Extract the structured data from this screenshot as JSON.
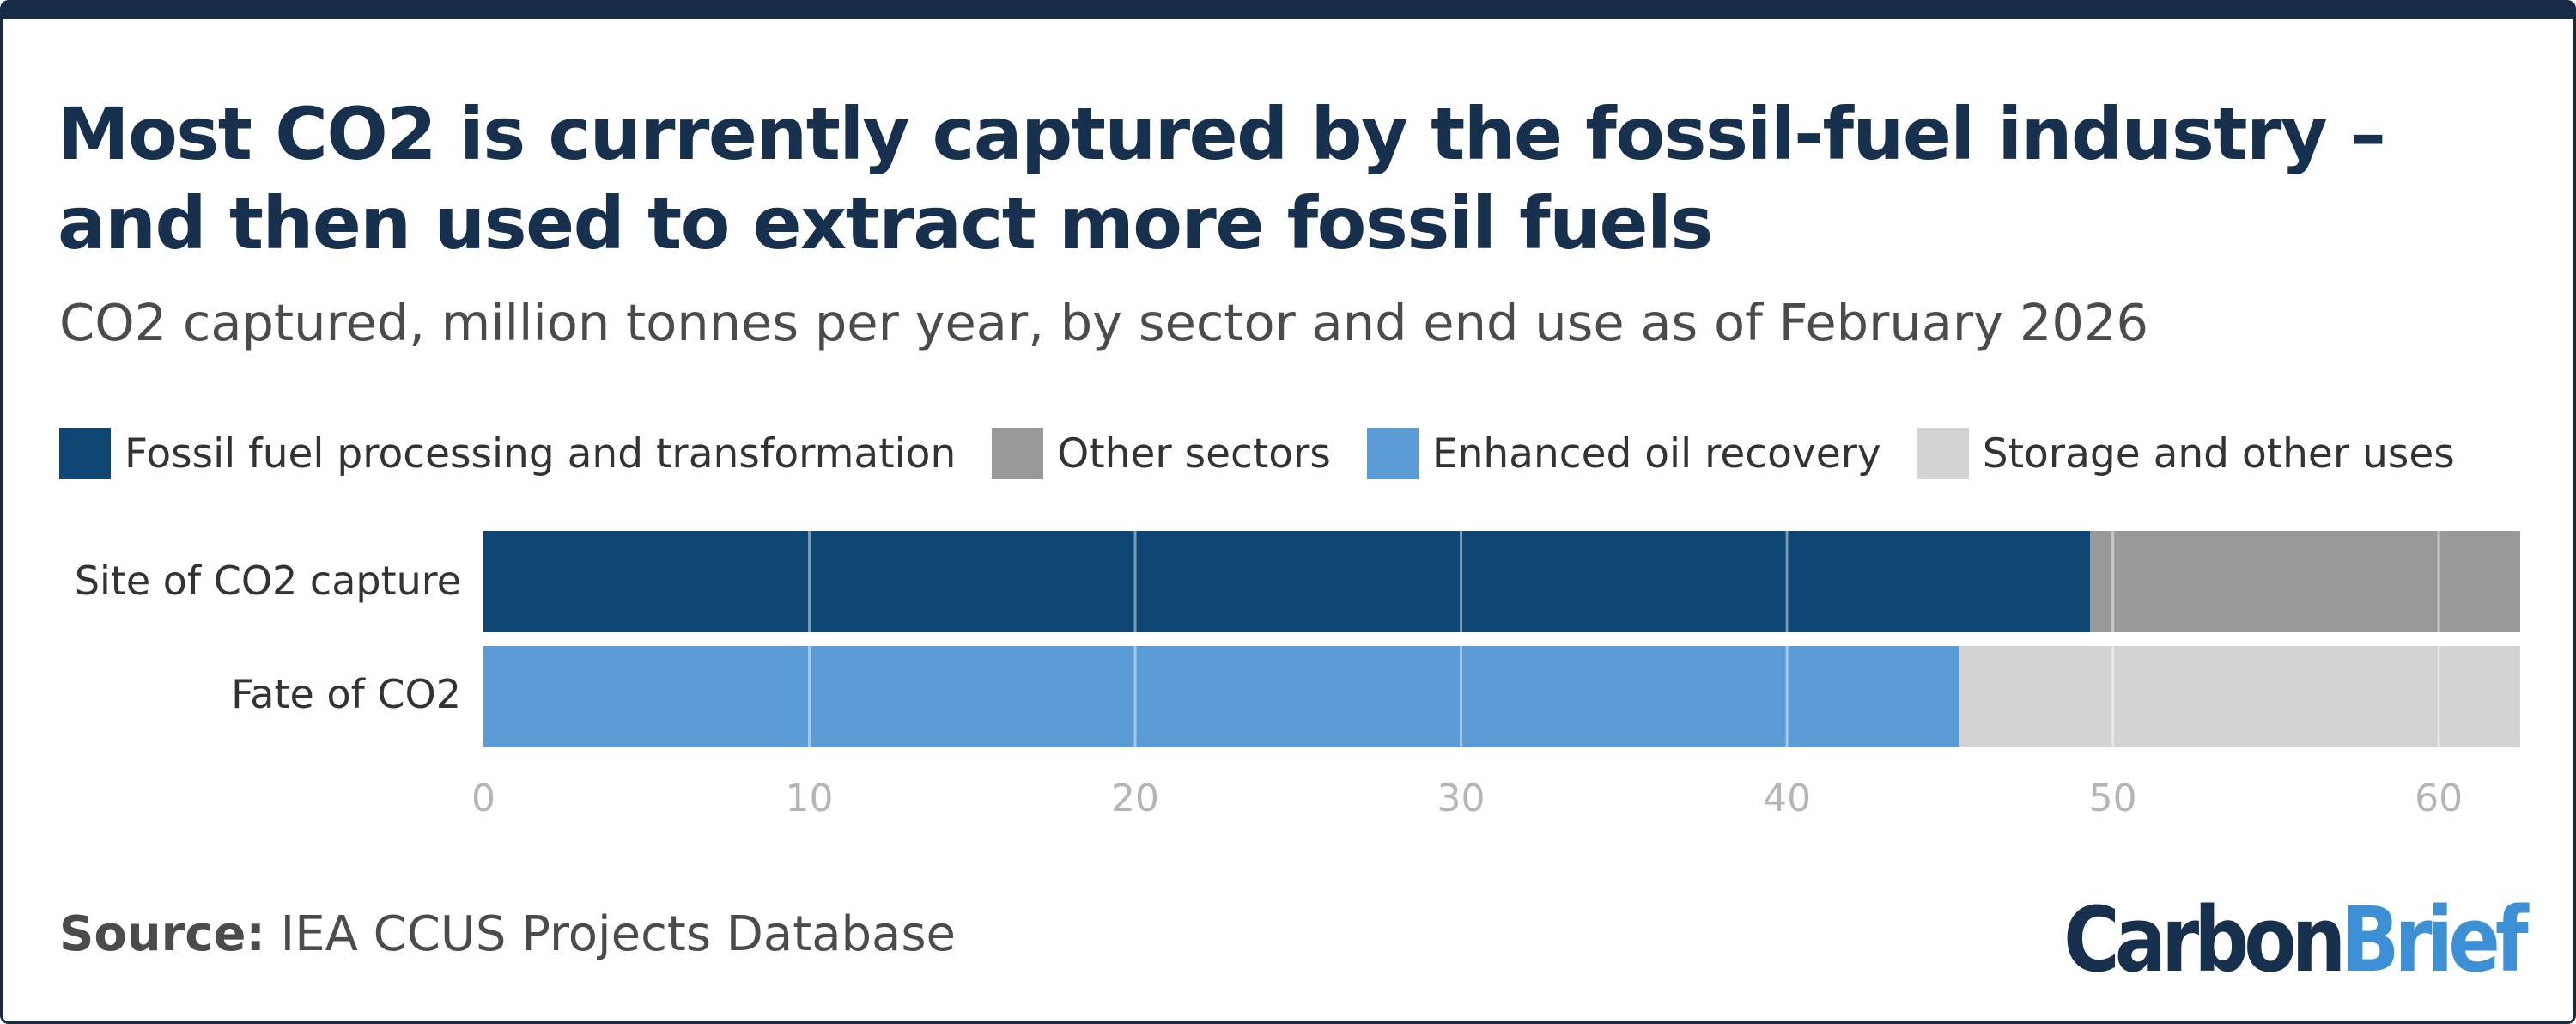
{
  "title": "Most CO2 is currently captured by the fossil-fuel industry – and then used to extract more fossil fuels",
  "subtitle": "CO2 captured, million tonnes per year, by sector and end use as of February 2026",
  "source": {
    "label": "Source:",
    "text": "IEA CCUS Projects Database"
  },
  "logo": {
    "part1": "Carbon",
    "part2": "Brief"
  },
  "legend": [
    {
      "label": "Fossil fuel processing and transformation",
      "color": "#0e4774"
    },
    {
      "label": "Other sectors",
      "color": "#999999"
    },
    {
      "label": "Enhanced oil recovery",
      "color": "#5b9bd6"
    },
    {
      "label": "Storage and other uses",
      "color": "#d3d3d3"
    }
  ],
  "chart_data": {
    "type": "bar",
    "orientation": "horizontal",
    "stacked": true,
    "categories": [
      "Site of CO2 capture",
      "Fate of CO2"
    ],
    "series": [
      {
        "name": "Fossil fuel processing and transformation",
        "color": "#0e4774",
        "values": [
          49.3,
          0
        ]
      },
      {
        "name": "Other sectors",
        "color": "#999999",
        "values": [
          13.2,
          0
        ]
      },
      {
        "name": "Enhanced oil recovery",
        "color": "#5b9bd6",
        "values": [
          0,
          45.3
        ]
      },
      {
        "name": "Storage and other uses",
        "color": "#d3d3d3",
        "values": [
          0,
          17.2
        ]
      }
    ],
    "xlim": [
      0,
      62.5
    ],
    "xticks": [
      0,
      10,
      20,
      30,
      40,
      50,
      60
    ],
    "grid": true,
    "legend_position": "top-left"
  }
}
